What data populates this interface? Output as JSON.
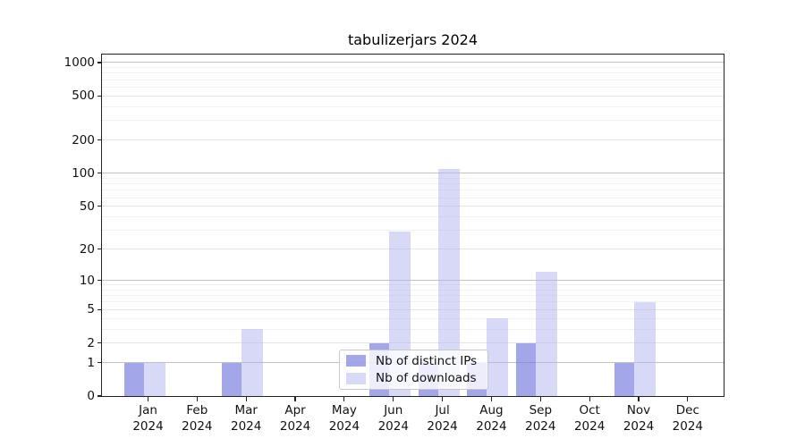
{
  "figure": {
    "title": "tabulizerjars 2024"
  },
  "chart_data": {
    "type": "bar",
    "title": "tabulizerjars 2024",
    "categories": [
      "Jan 2024",
      "Feb 2024",
      "Mar 2024",
      "Apr 2024",
      "May 2024",
      "Jun 2024",
      "Jul 2024",
      "Aug 2024",
      "Sep 2024",
      "Oct 2024",
      "Nov 2024",
      "Dec 2024"
    ],
    "series": [
      {
        "name": "Nb of distinct IPs",
        "values": [
          1,
          0,
          1,
          0,
          0,
          2,
          1,
          1,
          2,
          0,
          1,
          0
        ]
      },
      {
        "name": "Nb of downloads",
        "values": [
          1,
          0,
          3,
          0,
          0,
          29,
          110,
          4,
          12,
          0,
          6,
          0
        ]
      }
    ],
    "yscale": "log1p",
    "ylim": [
      0,
      1200
    ],
    "y_ticks": [
      0,
      1,
      2,
      5,
      10,
      20,
      50,
      100,
      200,
      500,
      1000
    ],
    "y_minor_gridlines": [
      3,
      4,
      6,
      7,
      8,
      9,
      30,
      40,
      60,
      70,
      80,
      90,
      300,
      400,
      600,
      700,
      800,
      900
    ],
    "y_mid_gridlines": [
      2,
      5,
      20,
      50,
      200,
      500
    ],
    "y_major_gridlines": [
      1,
      10,
      100,
      1000
    ],
    "grid": "on",
    "xlabel": "",
    "ylabel": "",
    "legend_position": "lower-center-inside"
  },
  "legend": {
    "items": [
      {
        "label": "Nb of distinct IPs",
        "swatch_color": "rgba(120,126,222,0.68)"
      },
      {
        "label": "Nb of downloads",
        "swatch_color": "rgba(177,180,239,0.50)"
      }
    ]
  },
  "colors": {
    "bar_distinct_ips": "rgba(120,126,222,0.68)",
    "bar_downloads": "rgba(177,180,239,0.50)",
    "bar_distinct_ips_flat": "#a2a6e9",
    "bar_downloads_flat": "#d8daf6",
    "grid_major": "#c2c2c2",
    "grid_mid": "#e4e4e4",
    "grid_minor": "#f1f1f1",
    "spine": "#222222",
    "text": "#111111"
  }
}
